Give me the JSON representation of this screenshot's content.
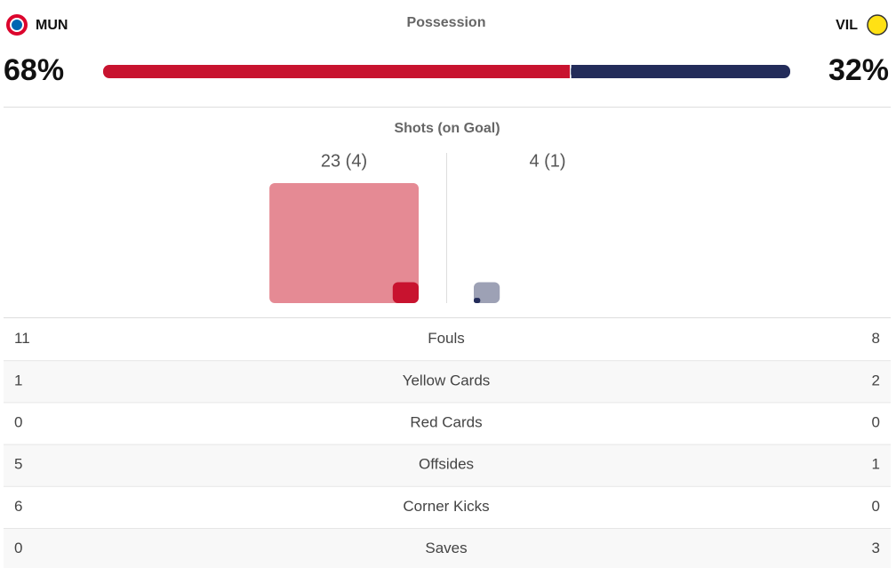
{
  "home": {
    "abbr": "MUN"
  },
  "away": {
    "abbr": "VIL"
  },
  "possession": {
    "title": "Possession",
    "home": {
      "value": 68,
      "label": "68%"
    },
    "away": {
      "value": 32,
      "label": "32%"
    }
  },
  "shots": {
    "title": "Shots (on Goal)",
    "home": {
      "shots": 23,
      "on_goal": 4,
      "label": "23 (4)"
    },
    "away": {
      "shots": 4,
      "on_goal": 1,
      "label": "4 (1)"
    }
  },
  "stats": [
    {
      "label": "Fouls",
      "home": 11,
      "away": 8
    },
    {
      "label": "Yellow Cards",
      "home": 1,
      "away": 2
    },
    {
      "label": "Red Cards",
      "home": 0,
      "away": 0
    },
    {
      "label": "Offsides",
      "home": 5,
      "away": 1
    },
    {
      "label": "Corner Kicks",
      "home": 6,
      "away": 0
    },
    {
      "label": "Saves",
      "home": 0,
      "away": 3
    }
  ]
}
